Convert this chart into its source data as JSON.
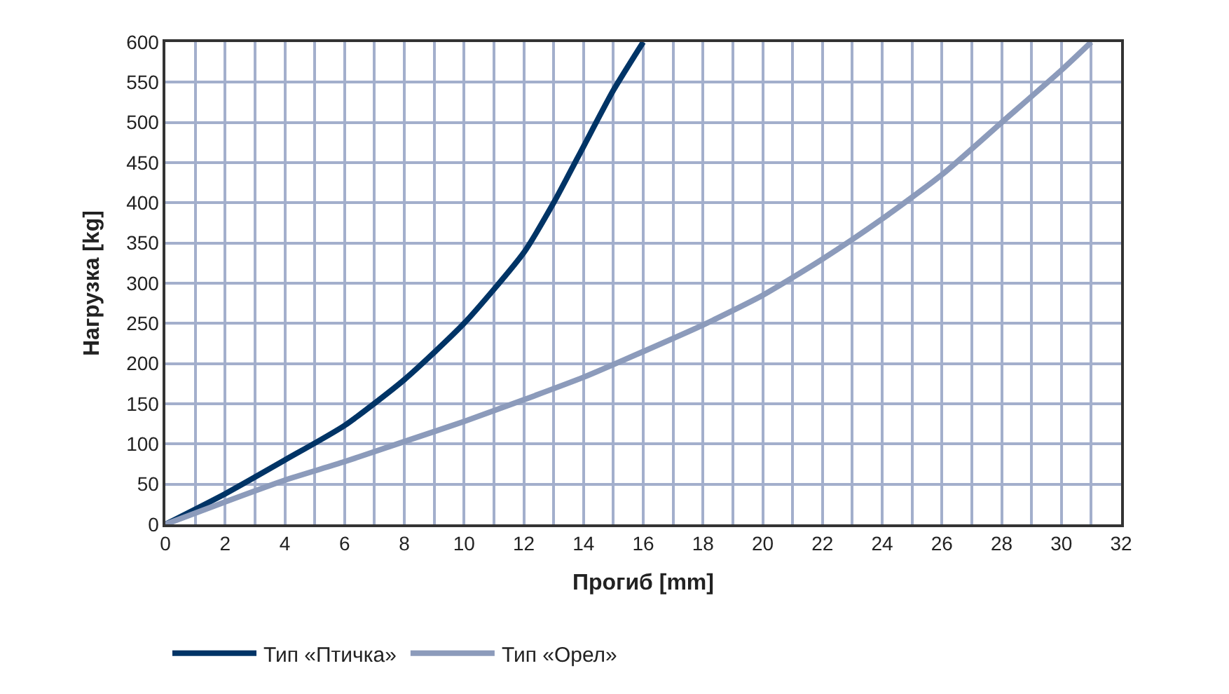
{
  "chart_data": {
    "type": "line",
    "xlabel": "Прогиб [mm]",
    "ylabel": "Нагрузка [kg]",
    "series": [
      {
        "name": "Тип «Птичка»",
        "color": "#003466",
        "x": [
          0,
          2,
          4,
          6,
          8,
          10,
          12,
          13,
          14,
          15,
          16
        ],
        "values": [
          0,
          38,
          80,
          123,
          180,
          250,
          338,
          400,
          470,
          540,
          600
        ]
      },
      {
        "name": "Тип «Орел»",
        "color": "#8c9bbb",
        "x": [
          0,
          2,
          4,
          6,
          8,
          10,
          12,
          14,
          16,
          18,
          20,
          22,
          24,
          26,
          28,
          30,
          31
        ],
        "values": [
          0,
          28,
          55,
          78,
          103,
          128,
          155,
          183,
          215,
          248,
          285,
          330,
          380,
          435,
          500,
          565,
          600
        ]
      }
    ],
    "xlim": [
      0,
      32
    ],
    "ylim": [
      0,
      600
    ],
    "xticks": [
      0,
      {
        "value": 1,
        "label": null
      },
      2,
      {
        "value": 3,
        "label": null
      },
      4,
      {
        "value": 5,
        "label": null
      },
      6,
      {
        "value": 7,
        "label": null
      },
      8,
      {
        "value": 9,
        "label": null
      },
      10,
      {
        "value": 11,
        "label": null
      },
      12,
      {
        "value": 13,
        "label": null
      },
      14,
      {
        "value": 15,
        "label": null
      },
      16,
      {
        "value": 17,
        "label": null
      },
      18,
      {
        "value": 19,
        "label": null
      },
      20,
      {
        "value": 21,
        "label": null
      },
      22,
      {
        "value": 23,
        "label": null
      },
      24,
      {
        "value": 25,
        "label": null
      },
      26,
      {
        "value": 27,
        "label": null
      },
      28,
      {
        "value": 29,
        "label": null
      },
      30,
      {
        "value": 31,
        "label": null
      },
      32
    ],
    "yticks": [
      0,
      50,
      100,
      150,
      200,
      250,
      300,
      350,
      400,
      450,
      500,
      550,
      600
    ],
    "grid": true,
    "legend": "bottom",
    "marker": "none",
    "line_style": "solid"
  }
}
